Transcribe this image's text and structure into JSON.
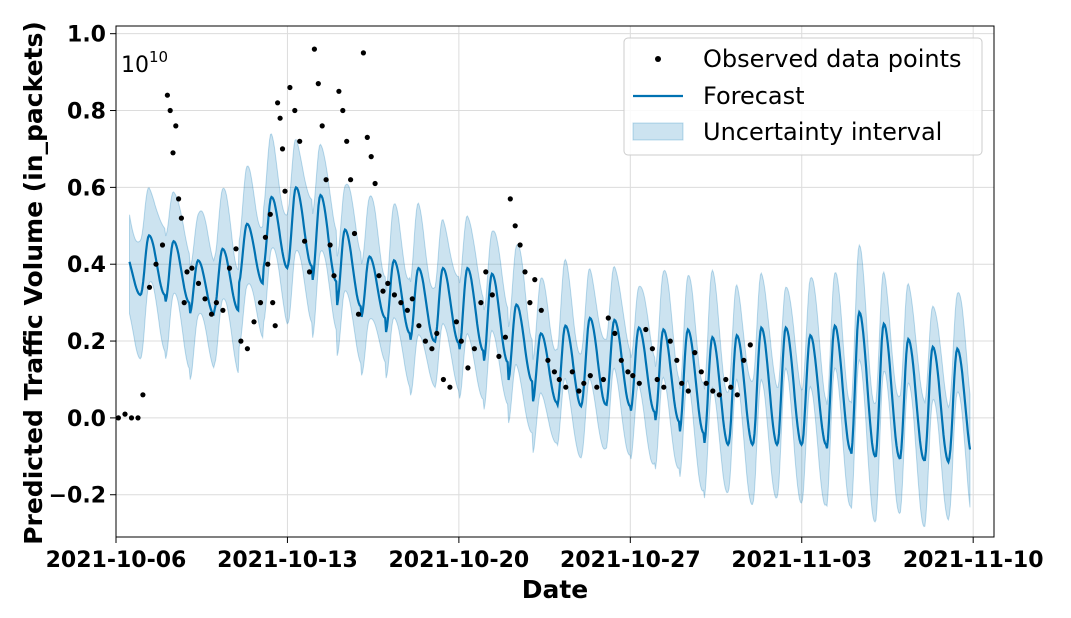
{
  "chart_data": {
    "type": "line",
    "xlabel": "Date",
    "ylabel": "Predicted Traffic Volume (in_packets)",
    "y_offset_label": "10",
    "y_offset_exponent": "10",
    "y_scale_factor": 10000000000,
    "x_range": [
      "2021-10-06",
      "2021-11-10"
    ],
    "ylim": [
      -0.31,
      1.02
    ],
    "grid": true,
    "legend_position": "top-right",
    "x_ticks": [
      "2021-10-06",
      "2021-10-13",
      "2021-10-20",
      "2021-10-27",
      "2021-11-03",
      "2021-11-10"
    ],
    "y_ticks": [
      -0.2,
      0.0,
      0.2,
      0.4,
      0.6,
      0.8,
      1.0
    ],
    "y_tick_labels": [
      "−0.2",
      "0.0",
      "0.2",
      "0.4",
      "0.6",
      "0.8",
      "1.0"
    ],
    "observed_end": "2021-10-31",
    "forecast_end": "2021-11-09",
    "colors": {
      "forecast": "#0072B2",
      "uncertainty": "#0072B2",
      "observed": "#000000"
    },
    "series": [
      {
        "name": "Observed data points",
        "kind": "scatter"
      },
      {
        "name": "Forecast",
        "kind": "line"
      },
      {
        "name": "Uncertainty interval",
        "kind": "band"
      }
    ],
    "forecast_days": [
      "2021-10-07",
      "2021-10-08",
      "2021-10-09",
      "2021-10-10",
      "2021-10-11",
      "2021-10-12",
      "2021-10-13",
      "2021-10-14",
      "2021-10-15",
      "2021-10-16",
      "2021-10-17",
      "2021-10-18",
      "2021-10-19",
      "2021-10-20",
      "2021-10-21",
      "2021-10-22",
      "2021-10-23",
      "2021-10-24",
      "2021-10-25",
      "2021-10-26",
      "2021-10-27",
      "2021-10-28",
      "2021-10-29",
      "2021-10-30",
      "2021-10-31",
      "2021-11-01",
      "2021-11-02",
      "2021-11-03",
      "2021-11-04",
      "2021-11-05",
      "2021-11-06",
      "2021-11-07",
      "2021-11-08",
      "2021-11-09"
    ],
    "forecast_peak": [
      0.43,
      0.52,
      0.4,
      0.42,
      0.46,
      0.55,
      0.6,
      0.6,
      0.56,
      0.42,
      0.42,
      0.4,
      0.38,
      0.4,
      0.38,
      0.37,
      0.22,
      0.22,
      0.26,
      0.26,
      0.25,
      0.22,
      0.24,
      0.22,
      0.2,
      0.23,
      0.24,
      0.23,
      0.2,
      0.28,
      0.27,
      0.22,
      0.19,
      0.18
    ],
    "forecast_trough": [
      0.32,
      0.32,
      0.28,
      0.26,
      0.3,
      0.4,
      0.38,
      0.41,
      0.3,
      0.28,
      0.24,
      0.2,
      0.2,
      0.19,
      0.16,
      0.13,
      0.06,
      0.02,
      0.04,
      0.03,
      0.03,
      0.0,
      -0.02,
      -0.06,
      -0.08,
      -0.06,
      -0.08,
      -0.06,
      -0.08,
      -0.09,
      -0.11,
      -0.1,
      -0.12,
      -0.11
    ],
    "band_halfwidth": 0.14,
    "observed_points": [
      [
        "2021-10-06",
        0.0
      ],
      [
        "2021-10-06",
        0.01
      ],
      [
        "2021-10-06",
        0.0
      ],
      [
        "2021-10-06",
        0.0
      ],
      [
        "2021-10-07",
        0.06
      ],
      [
        "2021-10-07",
        0.34
      ],
      [
        "2021-10-07",
        0.4
      ],
      [
        "2021-10-07",
        0.45
      ],
      [
        "2021-10-08",
        0.84
      ],
      [
        "2021-10-08",
        0.8
      ],
      [
        "2021-10-08",
        0.69
      ],
      [
        "2021-10-08",
        0.76
      ],
      [
        "2021-10-08",
        0.57
      ],
      [
        "2021-10-08",
        0.52
      ],
      [
        "2021-10-08",
        0.3
      ],
      [
        "2021-10-08",
        0.38
      ],
      [
        "2021-10-09",
        0.39
      ],
      [
        "2021-10-09",
        0.35
      ],
      [
        "2021-10-09",
        0.31
      ],
      [
        "2021-10-09",
        0.27
      ],
      [
        "2021-10-10",
        0.3
      ],
      [
        "2021-10-10",
        0.28
      ],
      [
        "2021-10-10",
        0.39
      ],
      [
        "2021-10-10",
        0.44
      ],
      [
        "2021-10-11",
        0.2
      ],
      [
        "2021-10-11",
        0.18
      ],
      [
        "2021-10-11",
        0.25
      ],
      [
        "2021-10-11",
        0.3
      ],
      [
        "2021-10-12",
        0.47
      ],
      [
        "2021-10-12",
        0.4
      ],
      [
        "2021-10-12",
        0.53
      ],
      [
        "2021-10-12",
        0.3
      ],
      [
        "2021-10-12",
        0.24
      ],
      [
        "2021-10-12",
        0.82
      ],
      [
        "2021-10-12",
        0.78
      ],
      [
        "2021-10-12",
        0.7
      ],
      [
        "2021-10-12",
        0.59
      ],
      [
        "2021-10-13",
        0.86
      ],
      [
        "2021-10-13",
        0.8
      ],
      [
        "2021-10-13",
        0.72
      ],
      [
        "2021-10-13",
        0.46
      ],
      [
        "2021-10-13",
        0.38
      ],
      [
        "2021-10-14",
        0.96
      ],
      [
        "2021-10-14",
        0.87
      ],
      [
        "2021-10-14",
        0.76
      ],
      [
        "2021-10-14",
        0.62
      ],
      [
        "2021-10-14",
        0.45
      ],
      [
        "2021-10-14",
        0.37
      ],
      [
        "2021-10-15",
        0.85
      ],
      [
        "2021-10-15",
        0.8
      ],
      [
        "2021-10-15",
        0.72
      ],
      [
        "2021-10-15",
        0.62
      ],
      [
        "2021-10-15",
        0.48
      ],
      [
        "2021-10-15",
        0.27
      ],
      [
        "2021-10-16",
        0.95
      ],
      [
        "2021-10-16",
        0.73
      ],
      [
        "2021-10-16",
        0.68
      ],
      [
        "2021-10-16",
        0.61
      ],
      [
        "2021-10-16",
        0.37
      ],
      [
        "2021-10-16",
        0.33
      ],
      [
        "2021-10-17",
        0.35
      ],
      [
        "2021-10-17",
        0.32
      ],
      [
        "2021-10-17",
        0.3
      ],
      [
        "2021-10-17",
        0.28
      ],
      [
        "2021-10-18",
        0.31
      ],
      [
        "2021-10-18",
        0.24
      ],
      [
        "2021-10-18",
        0.2
      ],
      [
        "2021-10-18",
        0.18
      ],
      [
        "2021-10-19",
        0.22
      ],
      [
        "2021-10-19",
        0.1
      ],
      [
        "2021-10-19",
        0.08
      ],
      [
        "2021-10-19",
        0.25
      ],
      [
        "2021-10-20",
        0.2
      ],
      [
        "2021-10-20",
        0.13
      ],
      [
        "2021-10-20",
        0.18
      ],
      [
        "2021-10-20",
        0.3
      ],
      [
        "2021-10-21",
        0.38
      ],
      [
        "2021-10-21",
        0.32
      ],
      [
        "2021-10-21",
        0.16
      ],
      [
        "2021-10-21",
        0.21
      ],
      [
        "2021-10-22",
        0.57
      ],
      [
        "2021-10-22",
        0.5
      ],
      [
        "2021-10-22",
        0.45
      ],
      [
        "2021-10-22",
        0.38
      ],
      [
        "2021-10-22",
        0.3
      ],
      [
        "2021-10-23",
        0.36
      ],
      [
        "2021-10-23",
        0.28
      ],
      [
        "2021-10-23",
        0.15
      ],
      [
        "2021-10-23",
        0.12
      ],
      [
        "2021-10-24",
        0.1
      ],
      [
        "2021-10-24",
        0.08
      ],
      [
        "2021-10-24",
        0.12
      ],
      [
        "2021-10-24",
        0.07
      ],
      [
        "2021-10-25",
        0.09
      ],
      [
        "2021-10-25",
        0.11
      ],
      [
        "2021-10-25",
        0.08
      ],
      [
        "2021-10-25",
        0.1
      ],
      [
        "2021-10-26",
        0.26
      ],
      [
        "2021-10-26",
        0.22
      ],
      [
        "2021-10-26",
        0.15
      ],
      [
        "2021-10-26",
        0.12
      ],
      [
        "2021-10-27",
        0.11
      ],
      [
        "2021-10-27",
        0.09
      ],
      [
        "2021-10-27",
        0.23
      ],
      [
        "2021-10-27",
        0.18
      ],
      [
        "2021-10-28",
        0.1
      ],
      [
        "2021-10-28",
        0.08
      ],
      [
        "2021-10-28",
        0.2
      ],
      [
        "2021-10-28",
        0.15
      ],
      [
        "2021-10-29",
        0.09
      ],
      [
        "2021-10-29",
        0.07
      ],
      [
        "2021-10-29",
        0.17
      ],
      [
        "2021-10-29",
        0.12
      ],
      [
        "2021-10-30",
        0.09
      ],
      [
        "2021-10-30",
        0.07
      ],
      [
        "2021-10-30",
        0.06
      ],
      [
        "2021-10-30",
        0.1
      ],
      [
        "2021-10-31",
        0.08
      ],
      [
        "2021-10-31",
        0.06
      ],
      [
        "2021-10-31",
        0.15
      ],
      [
        "2021-10-31",
        0.19
      ]
    ]
  }
}
